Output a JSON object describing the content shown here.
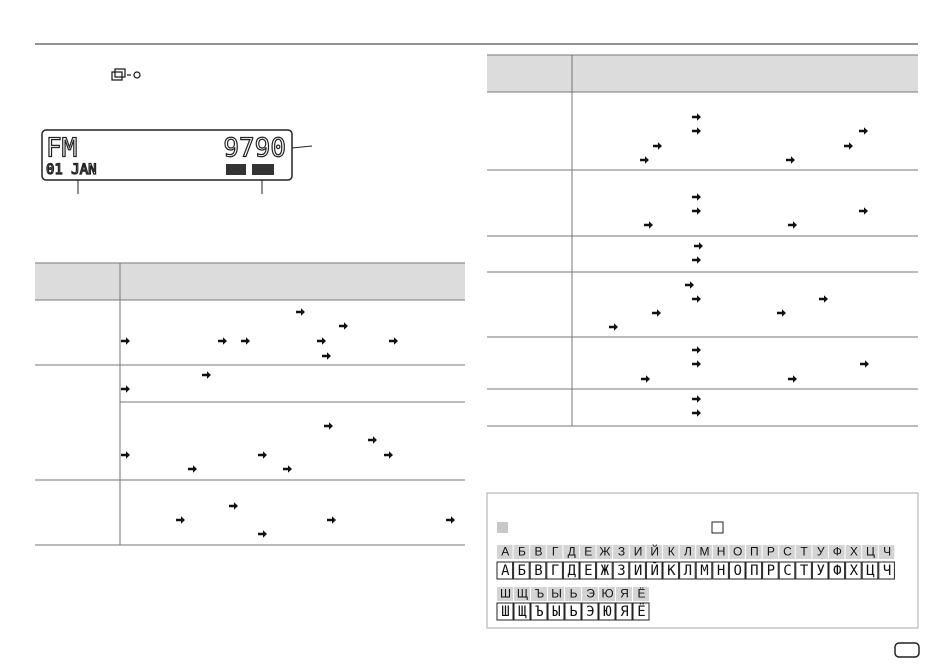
{
  "lcd": {
    "band": "FM",
    "frequency": "9790",
    "date": "01 JAN"
  },
  "alphabet": {
    "row1": [
      "А",
      "Б",
      "В",
      "Г",
      "Д",
      "Е",
      "Ж",
      "З",
      "И",
      "Й",
      "К",
      "Л",
      "М",
      "Н",
      "О",
      "П",
      "Р",
      "С",
      "Т",
      "У",
      "Ф",
      "Х",
      "Ц",
      "Ч"
    ],
    "row2": [
      "Ш",
      "Щ",
      "Ъ",
      "Ы",
      "Ь",
      "Э",
      "Ю",
      "Я",
      "Ё"
    ]
  }
}
